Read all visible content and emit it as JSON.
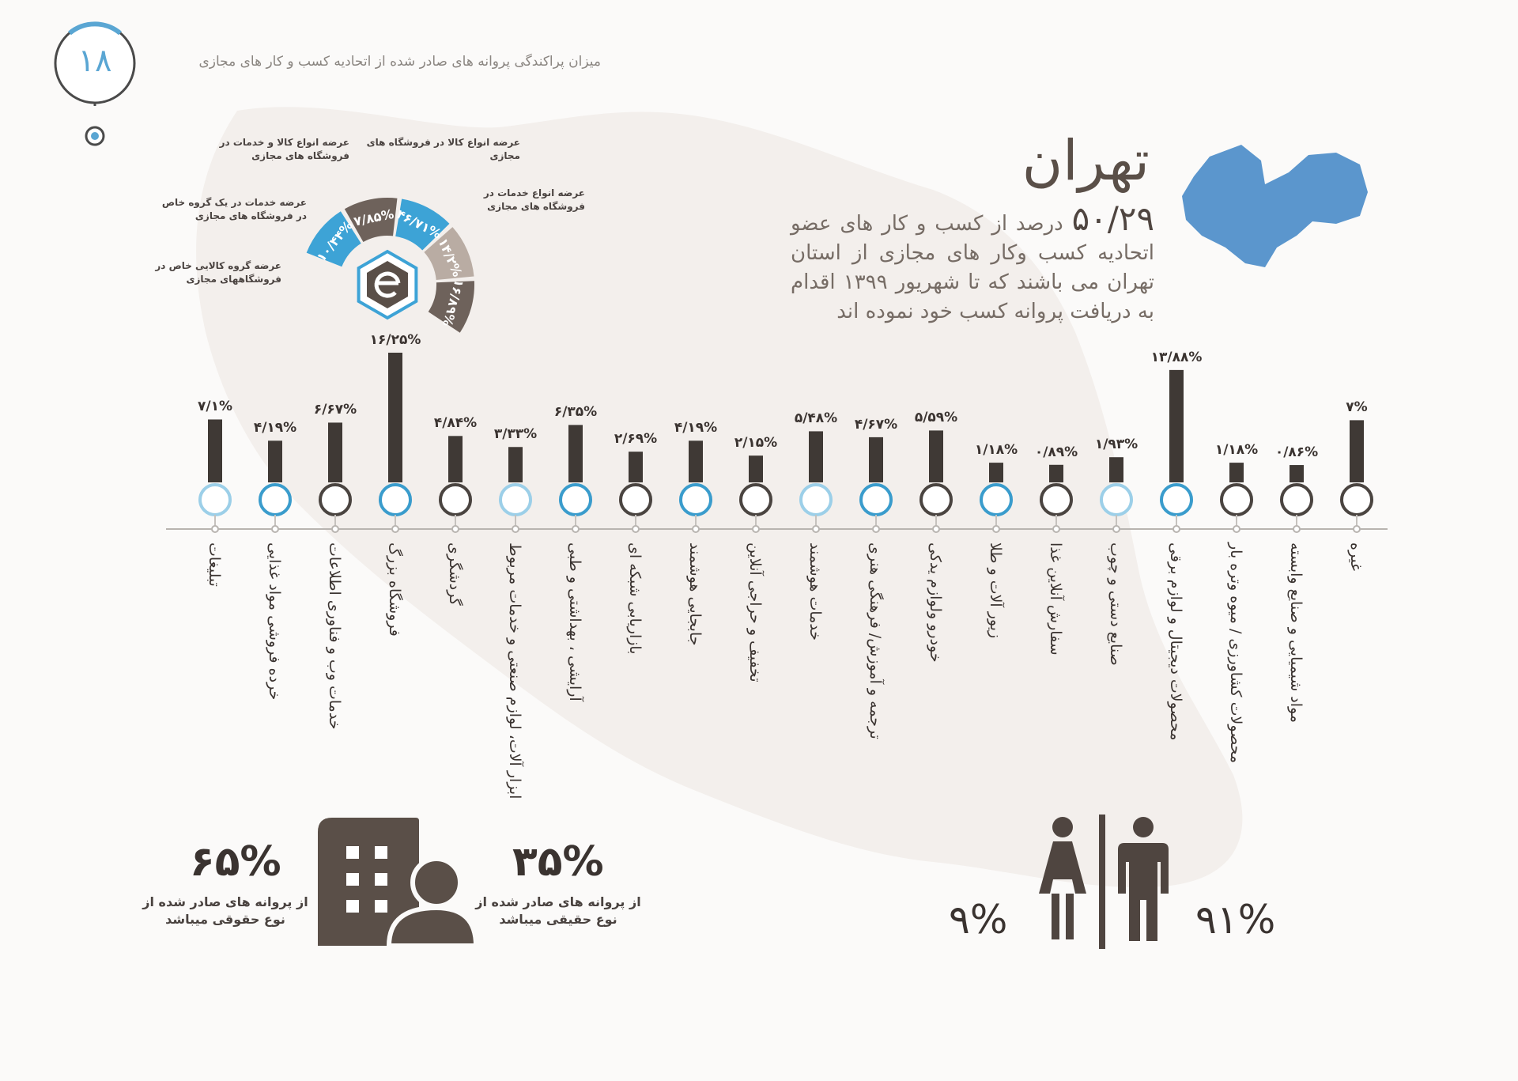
{
  "header": {
    "page_number": "۱۸",
    "title": "میزان پراکندگی پروانه های صادر شده از اتحادیه کسب و کار های مجازی"
  },
  "region": {
    "name": "تهران",
    "percent_text": "۵۰/۲۹",
    "description": "درصد از کسب و کار های عضو اتحادیه کسب وکار های مجازی از استان تهران می باشند که تا شهریور ۱۳۹۹ اقدام به دریافت پروانه کسب خود نموده اند",
    "map_color": "#5b96cd"
  },
  "ring_chart": {
    "segments": [
      {
        "label": "۱۰/۴۴%",
        "value": 10.44,
        "color": "#3da3d6",
        "note": "عرضه گروه کالایی خاص در فروشگاههای مجازی"
      },
      {
        "label": "۷/۸۵%",
        "value": 7.85,
        "color": "#6e625b",
        "note": "عرضه خدمات در یک گروه خاص در فروشگاه های مجازی"
      },
      {
        "label": "۴۶/۷۱%",
        "value": 46.71,
        "color": "#3da3d6",
        "note": "عرضه انواع کالا و خدمات در فروشگاه های مجازی"
      },
      {
        "label": "۱۴/۲%",
        "value": 14.2,
        "color": "#b9aca3",
        "note": "عرضه انواع کالا در فروشگاه های مجازی"
      },
      {
        "label": "۱۶/۸۹%",
        "value": 16.89,
        "color": "#6e625b",
        "note": "عرضه انواع خدمات در فروشگاه های مجازی"
      }
    ]
  },
  "chart_data": {
    "type": "bar",
    "categories": [
      "غیره",
      "مواد شیمیایی و صنایع وابسته",
      "محصولات کشاورزی / میوه وتره بار",
      "محصولات دیجیتال و لوازم برقی",
      "صنایع دستی و چوب",
      "سفارش آنلاین غذا",
      "زیور آلات و طلا",
      "خودرو ولوازم یدکی",
      "ترجمه و آموزش/ فرهنگی هنری",
      "خدمات هوشمند",
      "تخفیف و حراجی آنلاین",
      "جابجایی هوشمند",
      "بازاریابی شبکه ای",
      "آرایشی ، بهداشتی و طبی",
      "ابزار آلات، لوازم صنعتی و خدمات مربوط",
      "گردشگری",
      "فروشگاه بزرگ",
      "خدمات وب و فناوری اطلاعات",
      "خرده فروشی مواد غذایی",
      "تبلیغات"
    ],
    "values": [
      7,
      0.86,
      1.18,
      13.88,
      1.93,
      0.89,
      1.18,
      5.59,
      4.67,
      5.48,
      2.15,
      4.19,
      2.69,
      6.35,
      3.33,
      4.84,
      16.25,
      6.67,
      4.19,
      7.1
    ],
    "value_labels": [
      "۷%",
      "۰/۸۶%",
      "۱/۱۸%",
      "۱۳/۸۸%",
      "۱/۹۳%",
      "۰/۸۹%",
      "۱/۱۸%",
      "۵/۵۹%",
      "۴/۶۷%",
      "۵/۴۸%",
      "۲/۱۵%",
      "۴/۱۹%",
      "۲/۶۹%",
      "۶/۳۵%",
      "۳/۳۳%",
      "۴/۸۴%",
      "۱۶/۲۵%",
      "۶/۶۷%",
      "۴/۱۹%",
      "۷/۱%"
    ],
    "marker_style": [
      "dark",
      "dark",
      "dark",
      "blue",
      "light",
      "dark",
      "blue",
      "dark",
      "blue",
      "light",
      "dark",
      "blue",
      "dark",
      "blue",
      "light",
      "dark",
      "blue",
      "dark",
      "blue",
      "light"
    ],
    "ylim": [
      0,
      16.25
    ],
    "bar_color": "#3f3935"
  },
  "legal_stats": {
    "legal_pct": "۶۵%",
    "legal_note": "از پروانه های صادر شده از نوع حقوقی میباشد",
    "natural_pct": "۳۵%",
    "natural_note": "از پروانه های صادر شده از نوع حقیقی میباشد",
    "icon": "building-person-icon"
  },
  "gender_stats": {
    "female_pct": "۹%",
    "male_pct": "۹۱%",
    "icon": "woman-man-icon"
  }
}
